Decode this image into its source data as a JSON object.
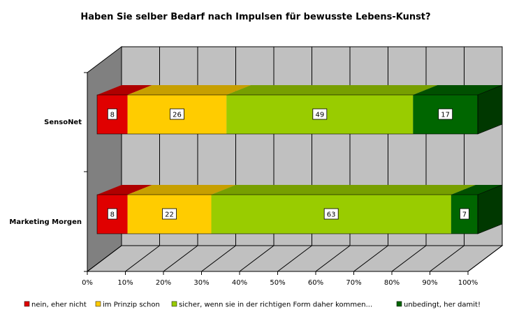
{
  "chart_data": {
    "type": "bar",
    "orientation": "horizontal",
    "stacked": "percent",
    "title": "Haben Sie selber Bedarf nach Impulsen für bewusste Lebens-Kunst?",
    "categories": [
      "SensoNet",
      "Marketing Morgen"
    ],
    "series": [
      {
        "name": "nein, eher nicht",
        "color": "#e00000",
        "values": [
          8,
          8
        ]
      },
      {
        "name": "im Prinzip schon",
        "color": "#ffcc00",
        "values": [
          26,
          22
        ]
      },
      {
        "name": "sicher, wenn sie in der richtigen Form daher kommen...",
        "color": "#99cc00",
        "values": [
          49,
          63
        ]
      },
      {
        "name": "unbedingt, her damit!",
        "color": "#006600",
        "values": [
          17,
          7
        ]
      }
    ],
    "xticks": [
      "0%",
      "10%",
      "20%",
      "30%",
      "40%",
      "50%",
      "60%",
      "70%",
      "80%",
      "90%",
      "100%"
    ],
    "xlim": [
      0,
      100
    ],
    "grid": true,
    "legend_position": "bottom",
    "style": "3d"
  }
}
